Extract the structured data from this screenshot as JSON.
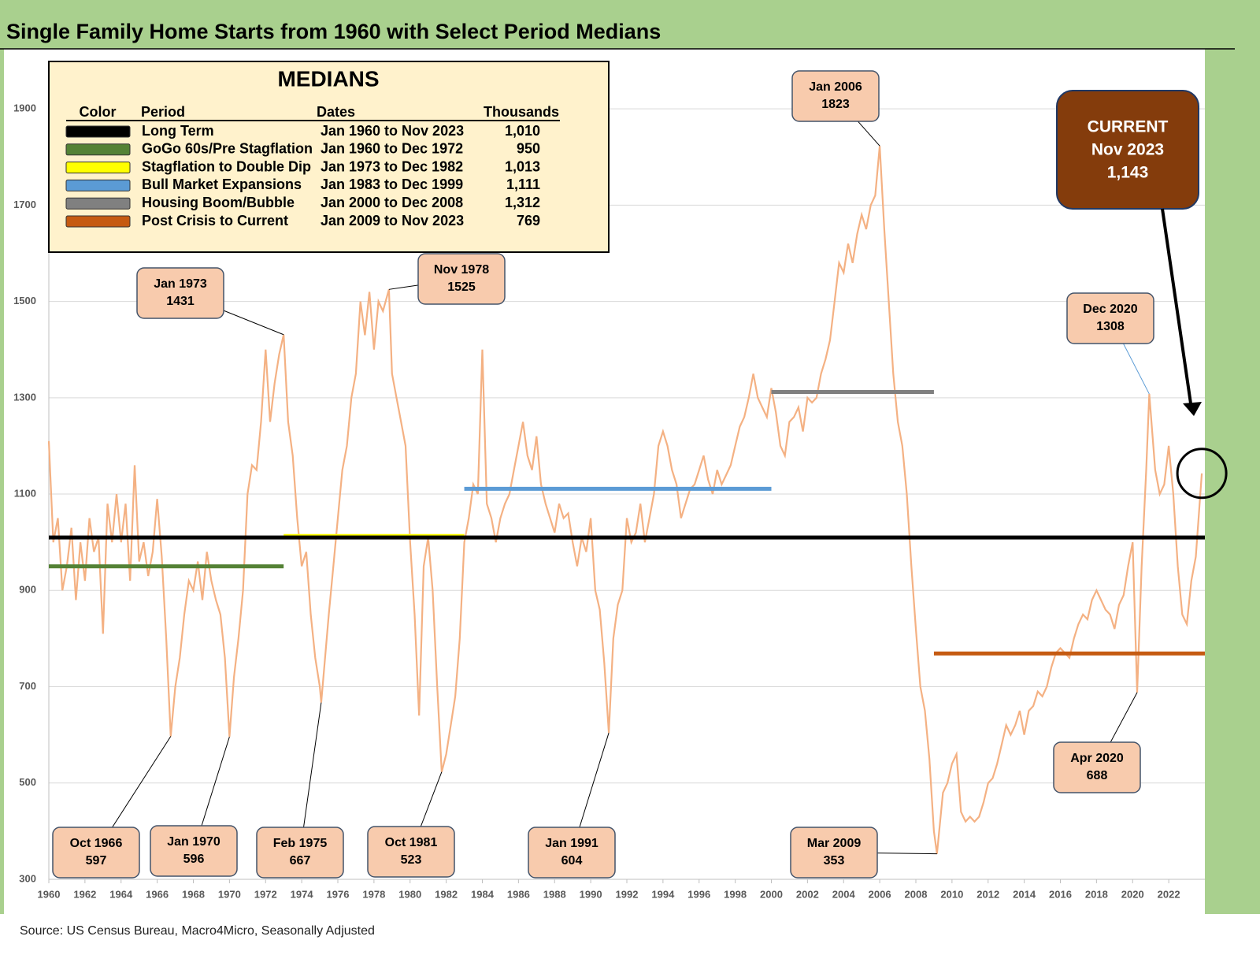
{
  "chart_data": {
    "type": "line",
    "title": "Single Family Home Starts from 1960 with Select Period Medians",
    "source": "Source: US Census Bureau, Macro4Micro, Seasonally Adjusted",
    "color": "#f4b183",
    "xlim": [
      1960,
      2024
    ],
    "xticks": [
      1960,
      1962,
      1964,
      1966,
      1968,
      1970,
      1972,
      1974,
      1976,
      1978,
      1980,
      1982,
      1984,
      1986,
      1988,
      1990,
      1992,
      1994,
      1996,
      1998,
      2000,
      2002,
      2004,
      2006,
      2008,
      2010,
      2012,
      2014,
      2016,
      2018,
      2020,
      2022
    ],
    "ylim": [
      300,
      2000
    ],
    "yticks": [
      300,
      500,
      700,
      900,
      1100,
      1300,
      1500,
      1700,
      1900
    ],
    "grid": true,
    "x": [
      1960.0,
      1960.25,
      1960.5,
      1960.75,
      1961.0,
      1961.25,
      1961.5,
      1961.75,
      1962.0,
      1962.25,
      1962.5,
      1962.75,
      1963.0,
      1963.25,
      1963.5,
      1963.75,
      1964.0,
      1964.25,
      1964.5,
      1964.75,
      1965.0,
      1965.25,
      1965.5,
      1965.75,
      1966.0,
      1966.25,
      1966.5,
      1966.75,
      1967.0,
      1967.25,
      1967.5,
      1967.75,
      1968.0,
      1968.25,
      1968.5,
      1968.75,
      1969.0,
      1969.25,
      1969.5,
      1969.75,
      1970.0,
      1970.25,
      1970.5,
      1970.75,
      1971.0,
      1971.25,
      1971.5,
      1971.75,
      1972.0,
      1972.25,
      1972.5,
      1972.75,
      1973.0,
      1973.25,
      1973.5,
      1973.75,
      1974.0,
      1974.25,
      1974.5,
      1974.75,
      1975.0,
      1975.08,
      1975.5,
      1975.75,
      1976.0,
      1976.25,
      1976.5,
      1976.75,
      1977.0,
      1977.25,
      1977.5,
      1977.75,
      1978.0,
      1978.25,
      1978.5,
      1978.83,
      1979.0,
      1979.25,
      1979.5,
      1979.75,
      1980.0,
      1980.25,
      1980.5,
      1980.75,
      1981.0,
      1981.25,
      1981.5,
      1981.75,
      1982.0,
      1982.25,
      1982.5,
      1982.75,
      1983.0,
      1983.25,
      1983.5,
      1983.75,
      1984.0,
      1984.25,
      1984.5,
      1984.75,
      1985.0,
      1985.25,
      1985.5,
      1985.75,
      1986.0,
      1986.25,
      1986.5,
      1986.75,
      1987.0,
      1987.25,
      1987.5,
      1987.75,
      1988.0,
      1988.25,
      1988.5,
      1988.75,
      1989.0,
      1989.25,
      1989.5,
      1989.75,
      1990.0,
      1990.25,
      1990.5,
      1990.75,
      1991.0,
      1991.25,
      1991.5,
      1991.75,
      1992.0,
      1992.25,
      1992.5,
      1992.75,
      1993.0,
      1993.25,
      1993.5,
      1993.75,
      1994.0,
      1994.25,
      1994.5,
      1994.75,
      1995.0,
      1995.25,
      1995.5,
      1995.75,
      1996.0,
      1996.25,
      1996.5,
      1996.75,
      1997.0,
      1997.25,
      1997.5,
      1997.75,
      1998.0,
      1998.25,
      1998.5,
      1998.75,
      1999.0,
      1999.25,
      1999.5,
      1999.75,
      2000.0,
      2000.25,
      2000.5,
      2000.75,
      2001.0,
      2001.25,
      2001.5,
      2001.75,
      2002.0,
      2002.25,
      2002.5,
      2002.75,
      2003.0,
      2003.25,
      2003.5,
      2003.75,
      2004.0,
      2004.25,
      2004.5,
      2004.75,
      2005.0,
      2005.25,
      2005.5,
      2005.75,
      2006.0,
      2006.25,
      2006.5,
      2006.75,
      2007.0,
      2007.25,
      2007.5,
      2007.75,
      2008.0,
      2008.25,
      2008.5,
      2008.75,
      2009.0,
      2009.17,
      2009.5,
      2009.75,
      2010.0,
      2010.25,
      2010.5,
      2010.75,
      2011.0,
      2011.25,
      2011.5,
      2011.75,
      2012.0,
      2012.25,
      2012.5,
      2012.75,
      2013.0,
      2013.25,
      2013.5,
      2013.75,
      2014.0,
      2014.25,
      2014.5,
      2014.75,
      2015.0,
      2015.25,
      2015.5,
      2015.75,
      2016.0,
      2016.25,
      2016.5,
      2016.75,
      2017.0,
      2017.25,
      2017.5,
      2017.75,
      2018.0,
      2018.25,
      2018.5,
      2018.75,
      2019.0,
      2019.25,
      2019.5,
      2019.75,
      2020.0,
      2020.25,
      2020.5,
      2020.75,
      2020.92,
      2021.25,
      2021.5,
      2021.75,
      2022.0,
      2022.25,
      2022.5,
      2022.75,
      2023.0,
      2023.25,
      2023.5,
      2023.83
    ],
    "values": [
      1210,
      1000,
      1050,
      900,
      950,
      1030,
      880,
      1000,
      920,
      1050,
      980,
      1010,
      810,
      1080,
      1000,
      1100,
      1000,
      1080,
      920,
      1160,
      960,
      1000,
      930,
      980,
      1090,
      970,
      800,
      597,
      700,
      760,
      850,
      920,
      900,
      960,
      880,
      980,
      920,
      880,
      850,
      760,
      596,
      720,
      800,
      900,
      1100,
      1160,
      1150,
      1250,
      1400,
      1250,
      1330,
      1390,
      1431,
      1250,
      1180,
      1050,
      950,
      980,
      850,
      760,
      700,
      667,
      850,
      950,
      1050,
      1150,
      1200,
      1300,
      1350,
      1500,
      1430,
      1520,
      1400,
      1500,
      1480,
      1525,
      1350,
      1300,
      1250,
      1200,
      1000,
      850,
      640,
      950,
      1010,
      900,
      700,
      523,
      560,
      620,
      680,
      800,
      1000,
      1050,
      1120,
      1100,
      1400,
      1080,
      1050,
      1000,
      1050,
      1080,
      1100,
      1150,
      1200,
      1250,
      1180,
      1150,
      1220,
      1120,
      1080,
      1050,
      1020,
      1080,
      1050,
      1060,
      1000,
      950,
      1010,
      980,
      1050,
      900,
      860,
      750,
      604,
      800,
      870,
      900,
      1050,
      1000,
      1020,
      1080,
      1000,
      1050,
      1100,
      1200,
      1230,
      1200,
      1150,
      1120,
      1050,
      1080,
      1110,
      1120,
      1150,
      1180,
      1130,
      1100,
      1150,
      1120,
      1140,
      1160,
      1200,
      1240,
      1260,
      1300,
      1350,
      1300,
      1280,
      1260,
      1320,
      1270,
      1200,
      1180,
      1250,
      1260,
      1280,
      1230,
      1300,
      1290,
      1300,
      1350,
      1380,
      1420,
      1500,
      1580,
      1560,
      1620,
      1580,
      1640,
      1680,
      1650,
      1700,
      1720,
      1823,
      1650,
      1500,
      1350,
      1250,
      1200,
      1100,
      950,
      820,
      700,
      650,
      550,
      400,
      353,
      480,
      500,
      540,
      560,
      440,
      420,
      430,
      420,
      430,
      460,
      500,
      510,
      540,
      580,
      620,
      600,
      620,
      650,
      600,
      650,
      660,
      690,
      680,
      700,
      740,
      770,
      780,
      770,
      760,
      800,
      830,
      850,
      840,
      880,
      900,
      880,
      860,
      850,
      820,
      870,
      890,
      950,
      1000,
      688,
      950,
      1150,
      1308,
      1150,
      1100,
      1120,
      1200,
      1100,
      950,
      850,
      830,
      920,
      970,
      1143
    ],
    "annotations": [
      {
        "date": "Oct 1966",
        "value": 597,
        "x": 1966.75
      },
      {
        "date": "Jan 1970",
        "value": 596,
        "x": 1970.0
      },
      {
        "date": "Jan 1973",
        "value": 1431,
        "x": 1973.0
      },
      {
        "date": "Feb 1975",
        "value": 667,
        "x": 1975.08
      },
      {
        "date": "Nov 1978",
        "value": 1525,
        "x": 1978.83
      },
      {
        "date": "Oct 1981",
        "value": 523,
        "x": 1981.75
      },
      {
        "date": "Jan 1991",
        "value": 604,
        "x": 1991.0
      },
      {
        "date": "Jan 2006",
        "value": 1823,
        "x": 2006.0
      },
      {
        "date": "Mar 2009",
        "value": 353,
        "x": 2009.17
      },
      {
        "date": "Apr 2020",
        "value": 688,
        "x": 2020.25
      },
      {
        "date": "Dec 2020",
        "value": 1308,
        "x": 2020.92
      }
    ],
    "current": {
      "title": "CURRENT",
      "date": "Nov 2023",
      "value": 1143,
      "value_label": "1,143",
      "x": 2023.83
    },
    "medians": {
      "title": "MEDIANS",
      "headers": [
        "Color",
        "Period",
        "Dates",
        "Thousands"
      ],
      "rows": [
        {
          "period": "Long Term",
          "dates": "Jan 1960 to Nov 2023",
          "value": 1010,
          "value_label": "1,010",
          "color": "#000000",
          "xrange": [
            1960,
            2024
          ]
        },
        {
          "period": "GoGo 60s/Pre Stagflation",
          "dates": "Jan 1960 to Dec 1972",
          "value": 950,
          "color": "#548235",
          "xrange": [
            1960,
            1973
          ]
        },
        {
          "period": "Stagflation to Double Dip",
          "dates": "Jan 1973 to Dec 1982",
          "value": 1013,
          "value_label": "1,013",
          "color": "#ffff00",
          "xrange": [
            1973,
            1983
          ]
        },
        {
          "period": "Bull Market Expansions",
          "dates": "Jan 1983 to Dec 1999",
          "value": 1111,
          "value_label": "1,111",
          "color": "#5b9bd5",
          "xrange": [
            1983,
            2000
          ]
        },
        {
          "period": "Housing Boom/Bubble",
          "dates": "Jan 2000 to Dec 2008",
          "value": 1312,
          "value_label": "1,312",
          "color": "#808080",
          "xrange": [
            2000,
            2009
          ]
        },
        {
          "period": "Post Crisis to Current",
          "dates": "Jan 2009 to Nov 2023",
          "value": 769,
          "color": "#c55a11",
          "xrange": [
            2009,
            2024
          ]
        }
      ]
    }
  }
}
